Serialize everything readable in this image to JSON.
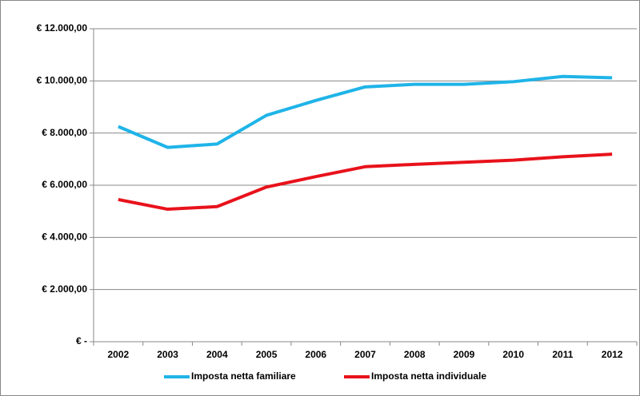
{
  "chart_data": {
    "type": "line",
    "categories": [
      "2002",
      "2003",
      "2004",
      "2005",
      "2006",
      "2007",
      "2008",
      "2009",
      "2010",
      "2011",
      "2012"
    ],
    "series": [
      {
        "name": "Imposta netta familiare",
        "color": "#1fb4e8",
        "values": [
          8250,
          7450,
          7580,
          8680,
          9250,
          9770,
          9870,
          9870,
          9970,
          10170,
          10120
        ]
      },
      {
        "name": "Imposta netta individuale",
        "color": "#e8121b",
        "values": [
          5450,
          5080,
          5180,
          5930,
          6330,
          6710,
          6800,
          6880,
          6960,
          7090,
          7190
        ]
      }
    ],
    "ylim": [
      0,
      12000
    ],
    "yticks": [
      {
        "value": 0,
        "label": "€ -"
      },
      {
        "value": 2000,
        "label": "€ 2.000,00"
      },
      {
        "value": 4000,
        "label": "€ 4.000,00"
      },
      {
        "value": 6000,
        "label": "€ 6.000,00"
      },
      {
        "value": 8000,
        "label": "€ 8.000,00"
      },
      {
        "value": 10000,
        "label": "€ 10.000,00"
      },
      {
        "value": 12000,
        "label": "€ 12.000,00"
      }
    ],
    "grid": true,
    "legend": "bottom"
  }
}
